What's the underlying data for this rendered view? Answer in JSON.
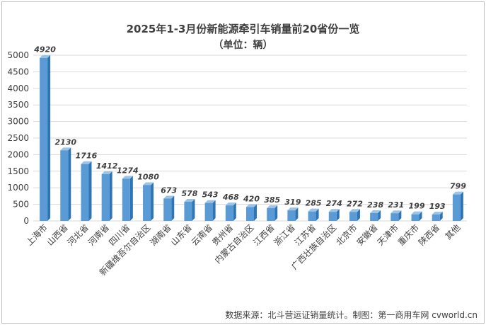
{
  "header": {
    "title": "2025年1-3月份新能源牵引车销量前20省份一览",
    "subtitle": "（单位：辆）"
  },
  "footer": {
    "source": "数据来源：北斗营运证销量统计。制图：第一商用车网 cvworld.cn"
  },
  "colors": {
    "bar_front": "#5b9bd5",
    "bar_side": "#2e75b6",
    "grid": "#d9d9d9",
    "text": "#404040"
  },
  "chart_data": {
    "type": "bar",
    "title": "2025年1-3月份新能源牵引车销量前20省份一览",
    "subtitle": "（单位：辆）",
    "categories": [
      "上海市",
      "山西省",
      "河北省",
      "河南省",
      "四川省",
      "新疆维吾尔自治区",
      "湖南省",
      "山东省",
      "云南省",
      "贵州省",
      "内蒙古自治区",
      "江西省",
      "浙江省",
      "江苏省",
      "广西壮族自治区",
      "北京市",
      "安徽省",
      "天津市",
      "重庆市",
      "陕西省",
      "其他"
    ],
    "values": [
      4920,
      2130,
      1716,
      1412,
      1274,
      1080,
      673,
      578,
      543,
      468,
      420,
      385,
      319,
      285,
      274,
      272,
      238,
      231,
      199,
      193,
      799
    ],
    "ylim": [
      0,
      5000
    ],
    "yticks": [
      0,
      500,
      1000,
      1500,
      2000,
      2500,
      3000,
      3500,
      4000,
      4500,
      5000
    ],
    "grid": true,
    "legend": "none"
  }
}
